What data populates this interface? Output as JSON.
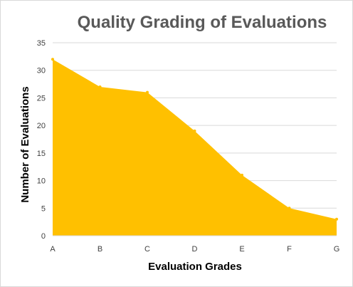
{
  "chart_data": {
    "type": "area",
    "title": "Quality Grading of Evaluations",
    "xlabel": "Evaluation Grades",
    "ylabel": "Number of Evaluations",
    "categories": [
      "A",
      "B",
      "C",
      "D",
      "E",
      "F",
      "G"
    ],
    "series": [
      {
        "values": [
          32,
          27,
          26,
          19,
          11,
          5,
          3
        ]
      }
    ],
    "ylim": [
      0,
      35
    ],
    "yticks": [
      "0",
      "5",
      "10",
      "15",
      "20",
      "25",
      "30",
      "35"
    ],
    "grid": true,
    "legend": "none",
    "colors": {
      "area": "#FFC000",
      "grid": "#D9D9D9",
      "title": "#595959"
    }
  }
}
